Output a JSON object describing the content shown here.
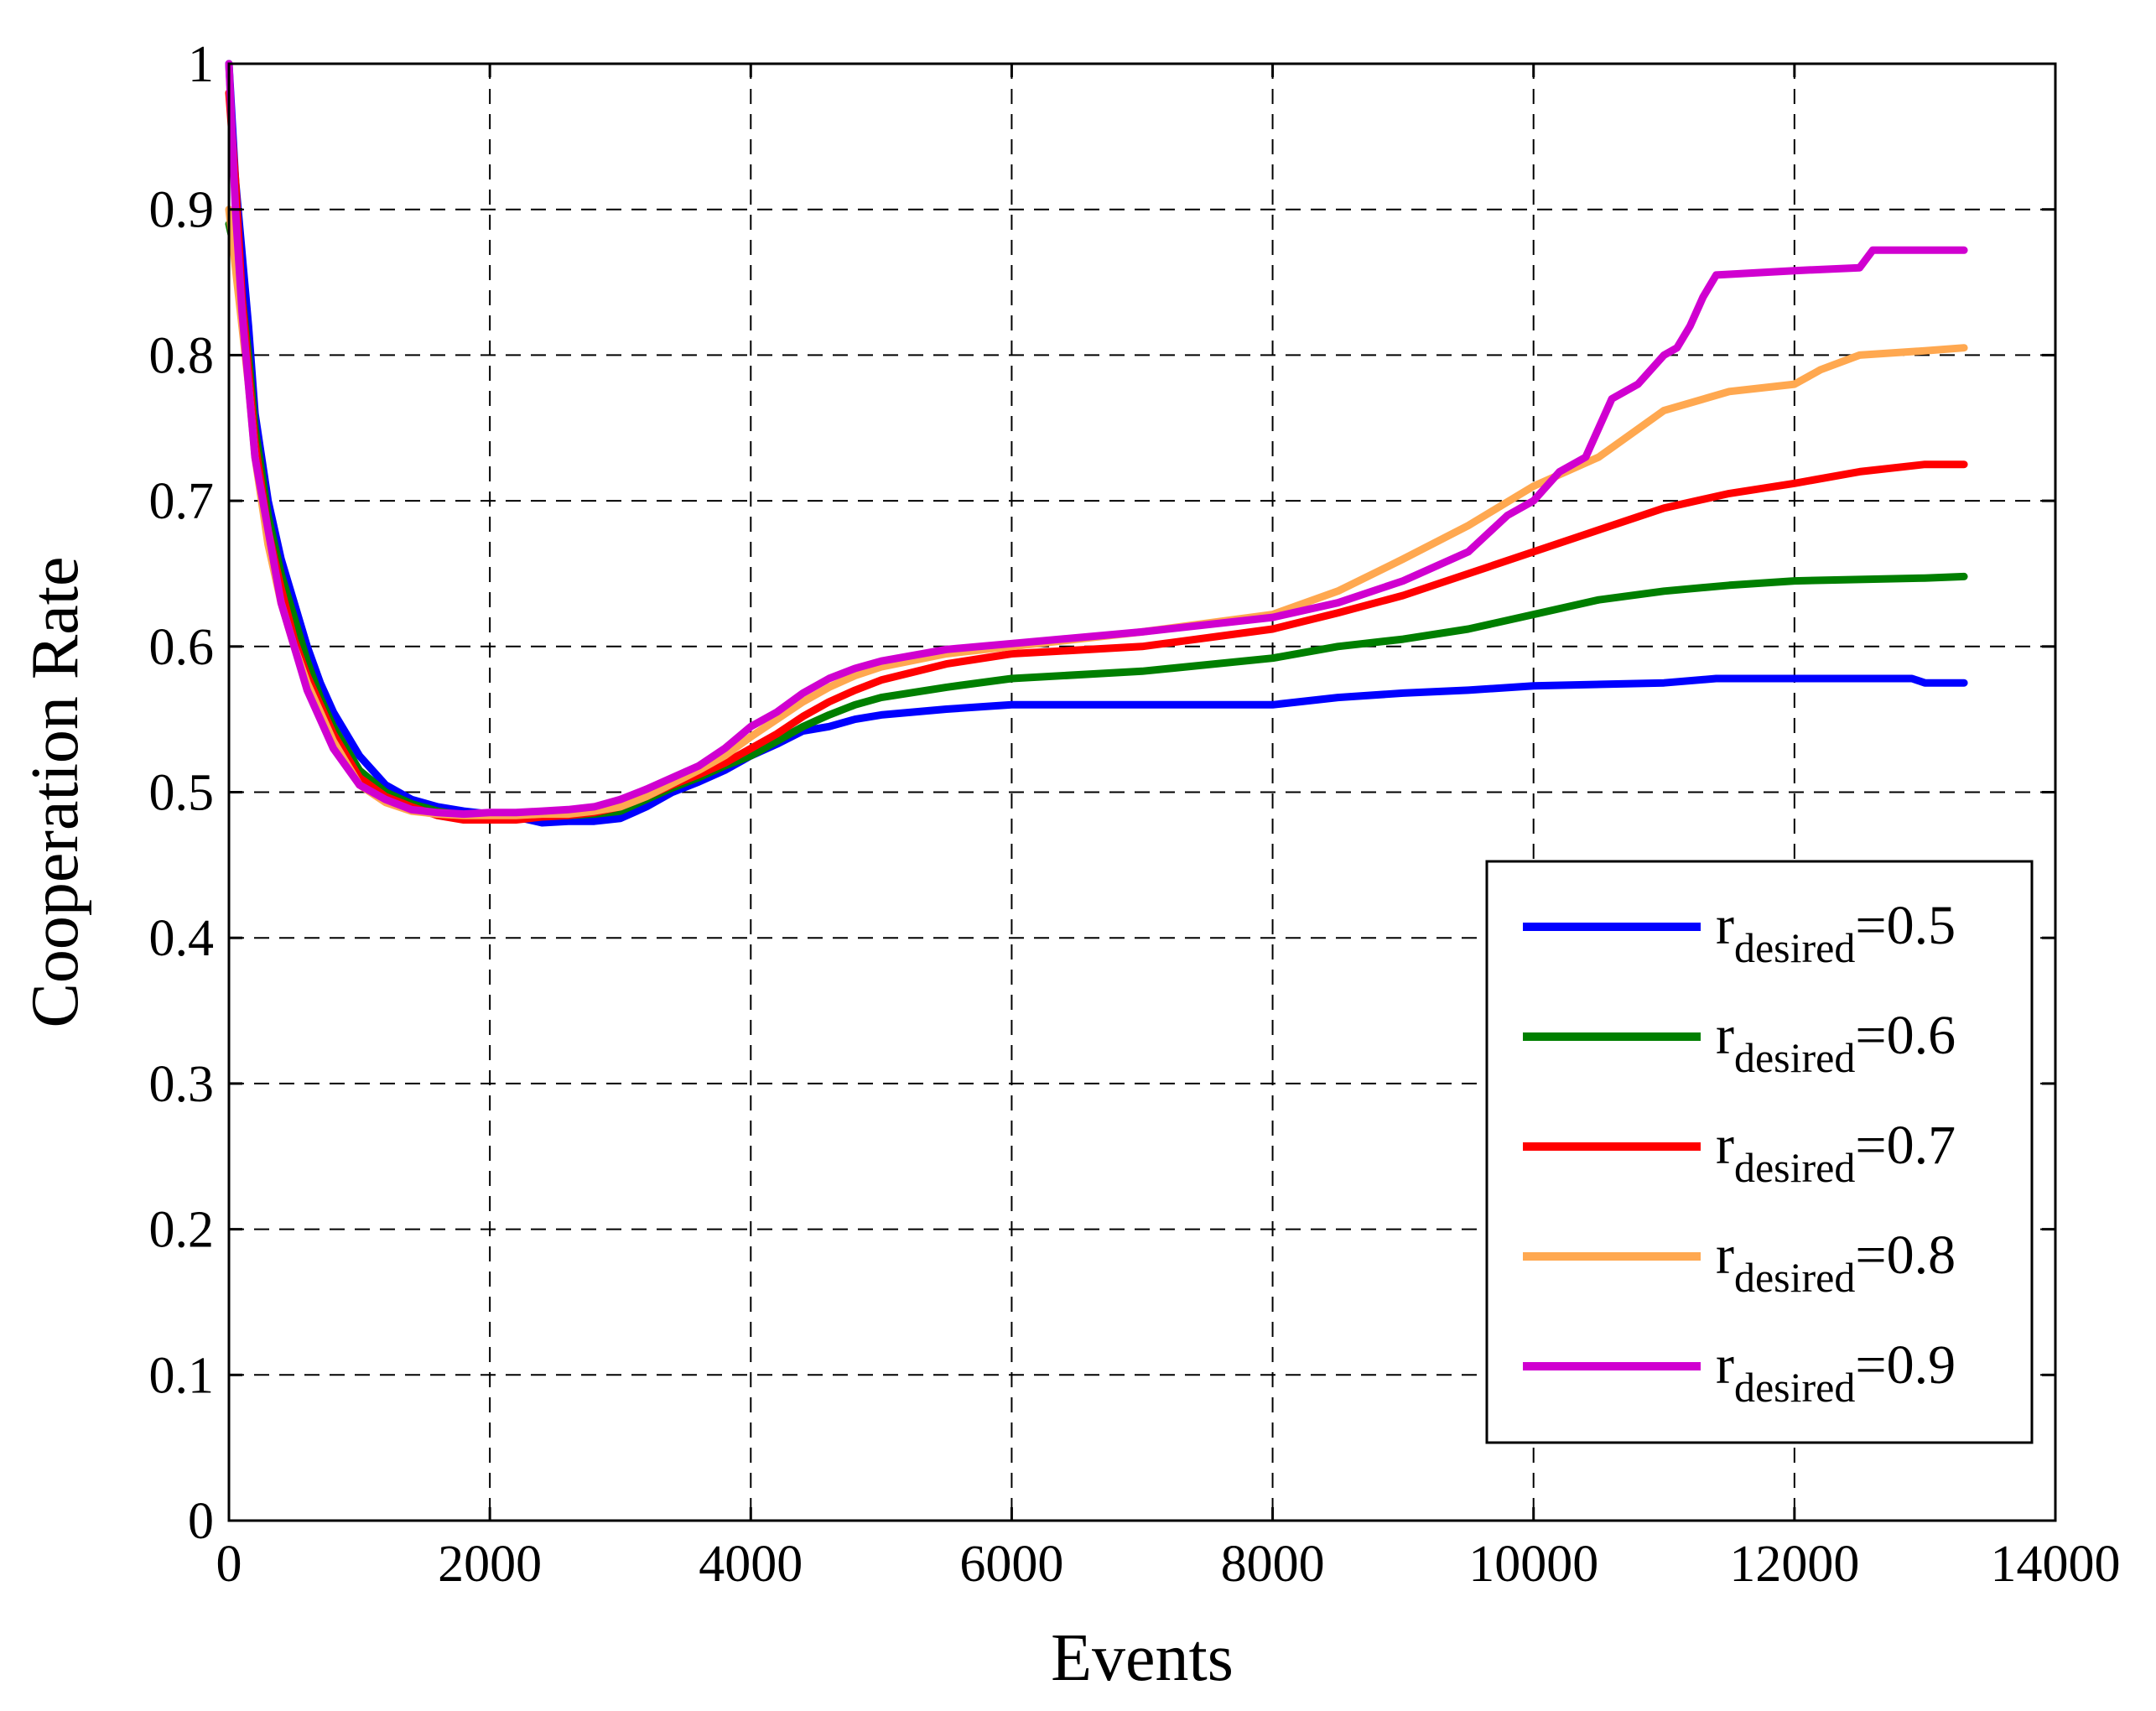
{
  "chart_data": {
    "type": "line",
    "title": "",
    "xlabel": "Events",
    "ylabel": "Cooperation Rate",
    "xlim": [
      0,
      14000
    ],
    "ylim": [
      0,
      1
    ],
    "xticks": [
      0,
      2000,
      4000,
      6000,
      8000,
      10000,
      12000,
      14000
    ],
    "xtick_labels": [
      "0",
      "2000",
      "4000",
      "6000",
      "8000",
      "10000",
      "12000",
      "14000"
    ],
    "yticks": [
      0,
      0.1,
      0.2,
      0.3,
      0.4,
      0.5,
      0.6,
      0.7,
      0.8,
      0.9,
      1
    ],
    "ytick_labels": [
      "0",
      "0.1",
      "0.2",
      "0.3",
      "0.4",
      "0.5",
      "0.6",
      "0.7",
      "0.8",
      "0.9",
      "1"
    ],
    "grid": true,
    "legend_position": "bottom-right",
    "series": [
      {
        "label_base": "r",
        "label_sub": "desired",
        "label_suffix": "=0.5",
        "color": "#0000ff",
        "x": [
          0,
          50,
          100,
          150,
          200,
          300,
          400,
          500,
          600,
          700,
          800,
          1000,
          1200,
          1400,
          1600,
          1800,
          2000,
          2200,
          2400,
          2600,
          2800,
          3000,
          3200,
          3400,
          3600,
          3800,
          4000,
          4200,
          4400,
          4600,
          4800,
          5000,
          5500,
          6000,
          7000,
          8000,
          8500,
          9000,
          9500,
          10000,
          11000,
          11400,
          12000,
          12500,
          12900,
          13000,
          13300
        ],
        "y": [
          1.0,
          0.92,
          0.87,
          0.82,
          0.76,
          0.7,
          0.66,
          0.63,
          0.6,
          0.575,
          0.555,
          0.525,
          0.505,
          0.495,
          0.49,
          0.487,
          0.485,
          0.483,
          0.479,
          0.48,
          0.48,
          0.482,
          0.49,
          0.5,
          0.507,
          0.515,
          0.525,
          0.533,
          0.542,
          0.545,
          0.55,
          0.553,
          0.557,
          0.56,
          0.56,
          0.56,
          0.565,
          0.568,
          0.57,
          0.573,
          0.575,
          0.578,
          0.578,
          0.578,
          0.578,
          0.575,
          0.575
        ]
      },
      {
        "label_base": "r",
        "label_sub": "desired",
        "label_suffix": "=0.6",
        "color": "#007f00",
        "x": [
          0,
          50,
          100,
          150,
          200,
          300,
          400,
          500,
          600,
          700,
          800,
          1000,
          1200,
          1400,
          1600,
          1800,
          2000,
          2200,
          2400,
          2600,
          2800,
          3000,
          3200,
          3400,
          3600,
          3800,
          4000,
          4200,
          4400,
          4600,
          4800,
          5000,
          5500,
          6000,
          7000,
          8000,
          8500,
          9000,
          9500,
          10000,
          10500,
          11000,
          11500,
          12000,
          13000,
          13300
        ],
        "y": [
          0.89,
          0.87,
          0.84,
          0.8,
          0.75,
          0.69,
          0.65,
          0.62,
          0.59,
          0.565,
          0.545,
          0.515,
          0.5,
          0.492,
          0.487,
          0.484,
          0.483,
          0.483,
          0.484,
          0.484,
          0.485,
          0.487,
          0.495,
          0.503,
          0.51,
          0.518,
          0.525,
          0.535,
          0.545,
          0.553,
          0.56,
          0.565,
          0.572,
          0.578,
          0.583,
          0.592,
          0.6,
          0.605,
          0.612,
          0.622,
          0.632,
          0.638,
          0.642,
          0.645,
          0.647,
          0.648
        ]
      },
      {
        "label_base": "r",
        "label_sub": "desired",
        "label_suffix": "=0.7",
        "color": "#ff0000",
        "x": [
          0,
          50,
          100,
          150,
          200,
          300,
          400,
          500,
          600,
          700,
          800,
          1000,
          1200,
          1400,
          1600,
          1800,
          2000,
          2200,
          2400,
          2600,
          2800,
          3000,
          3200,
          3400,
          3600,
          3800,
          4000,
          4200,
          4400,
          4600,
          4800,
          5000,
          5500,
          6000,
          7000,
          8000,
          8500,
          9000,
          9500,
          10000,
          10500,
          11000,
          11500,
          12000,
          12500,
          13000,
          13300
        ],
        "y": [
          0.98,
          0.92,
          0.84,
          0.79,
          0.74,
          0.68,
          0.64,
          0.605,
          0.58,
          0.56,
          0.54,
          0.51,
          0.497,
          0.49,
          0.484,
          0.481,
          0.481,
          0.481,
          0.483,
          0.484,
          0.486,
          0.49,
          0.497,
          0.505,
          0.512,
          0.52,
          0.53,
          0.54,
          0.552,
          0.562,
          0.57,
          0.577,
          0.588,
          0.595,
          0.6,
          0.612,
          0.623,
          0.635,
          0.65,
          0.665,
          0.68,
          0.695,
          0.705,
          0.712,
          0.72,
          0.725,
          0.725
        ]
      },
      {
        "label_base": "r",
        "label_sub": "desired",
        "label_suffix": "=0.8",
        "color": "#ffa850",
        "x": [
          0,
          50,
          100,
          150,
          200,
          300,
          400,
          500,
          600,
          700,
          800,
          1000,
          1200,
          1400,
          1600,
          1800,
          2000,
          2200,
          2400,
          2600,
          2800,
          3000,
          3200,
          3400,
          3600,
          3800,
          4000,
          4200,
          4400,
          4600,
          4800,
          5000,
          5500,
          6000,
          7000,
          8000,
          8500,
          9000,
          9500,
          10000,
          10500,
          11000,
          11500,
          12000,
          12200,
          12500,
          13000,
          13300
        ],
        "y": [
          0.9,
          0.86,
          0.82,
          0.78,
          0.73,
          0.67,
          0.63,
          0.6,
          0.575,
          0.555,
          0.535,
          0.505,
          0.493,
          0.487,
          0.485,
          0.484,
          0.484,
          0.484,
          0.485,
          0.485,
          0.487,
          0.49,
          0.497,
          0.506,
          0.515,
          0.525,
          0.538,
          0.55,
          0.562,
          0.572,
          0.58,
          0.586,
          0.595,
          0.6,
          0.61,
          0.622,
          0.638,
          0.66,
          0.683,
          0.71,
          0.73,
          0.762,
          0.775,
          0.78,
          0.79,
          0.8,
          0.803,
          0.805
        ]
      },
      {
        "label_base": "r",
        "label_sub": "desired",
        "label_suffix": "=0.9",
        "color": "#d000d0",
        "x": [
          0,
          50,
          100,
          150,
          200,
          300,
          400,
          500,
          600,
          700,
          800,
          1000,
          1200,
          1400,
          1600,
          1800,
          2000,
          2200,
          2400,
          2600,
          2800,
          3000,
          3200,
          3400,
          3600,
          3800,
          4000,
          4200,
          4400,
          4600,
          4800,
          5000,
          5500,
          6000,
          7000,
          8000,
          8500,
          9000,
          9500,
          9800,
          10000,
          10200,
          10400,
          10600,
          10700,
          10800,
          11000,
          11100,
          11200,
          11300,
          11400,
          12000,
          12500,
          12600,
          13000,
          13300
        ],
        "y": [
          1.0,
          0.9,
          0.83,
          0.78,
          0.73,
          0.68,
          0.63,
          0.6,
          0.57,
          0.55,
          0.53,
          0.505,
          0.495,
          0.488,
          0.486,
          0.485,
          0.486,
          0.486,
          0.487,
          0.488,
          0.49,
          0.495,
          0.502,
          0.51,
          0.518,
          0.53,
          0.545,
          0.555,
          0.568,
          0.578,
          0.585,
          0.59,
          0.598,
          0.602,
          0.61,
          0.62,
          0.63,
          0.645,
          0.665,
          0.69,
          0.7,
          0.72,
          0.73,
          0.77,
          0.775,
          0.78,
          0.8,
          0.805,
          0.82,
          0.84,
          0.855,
          0.858,
          0.86,
          0.872,
          0.872,
          0.872
        ]
      }
    ]
  }
}
